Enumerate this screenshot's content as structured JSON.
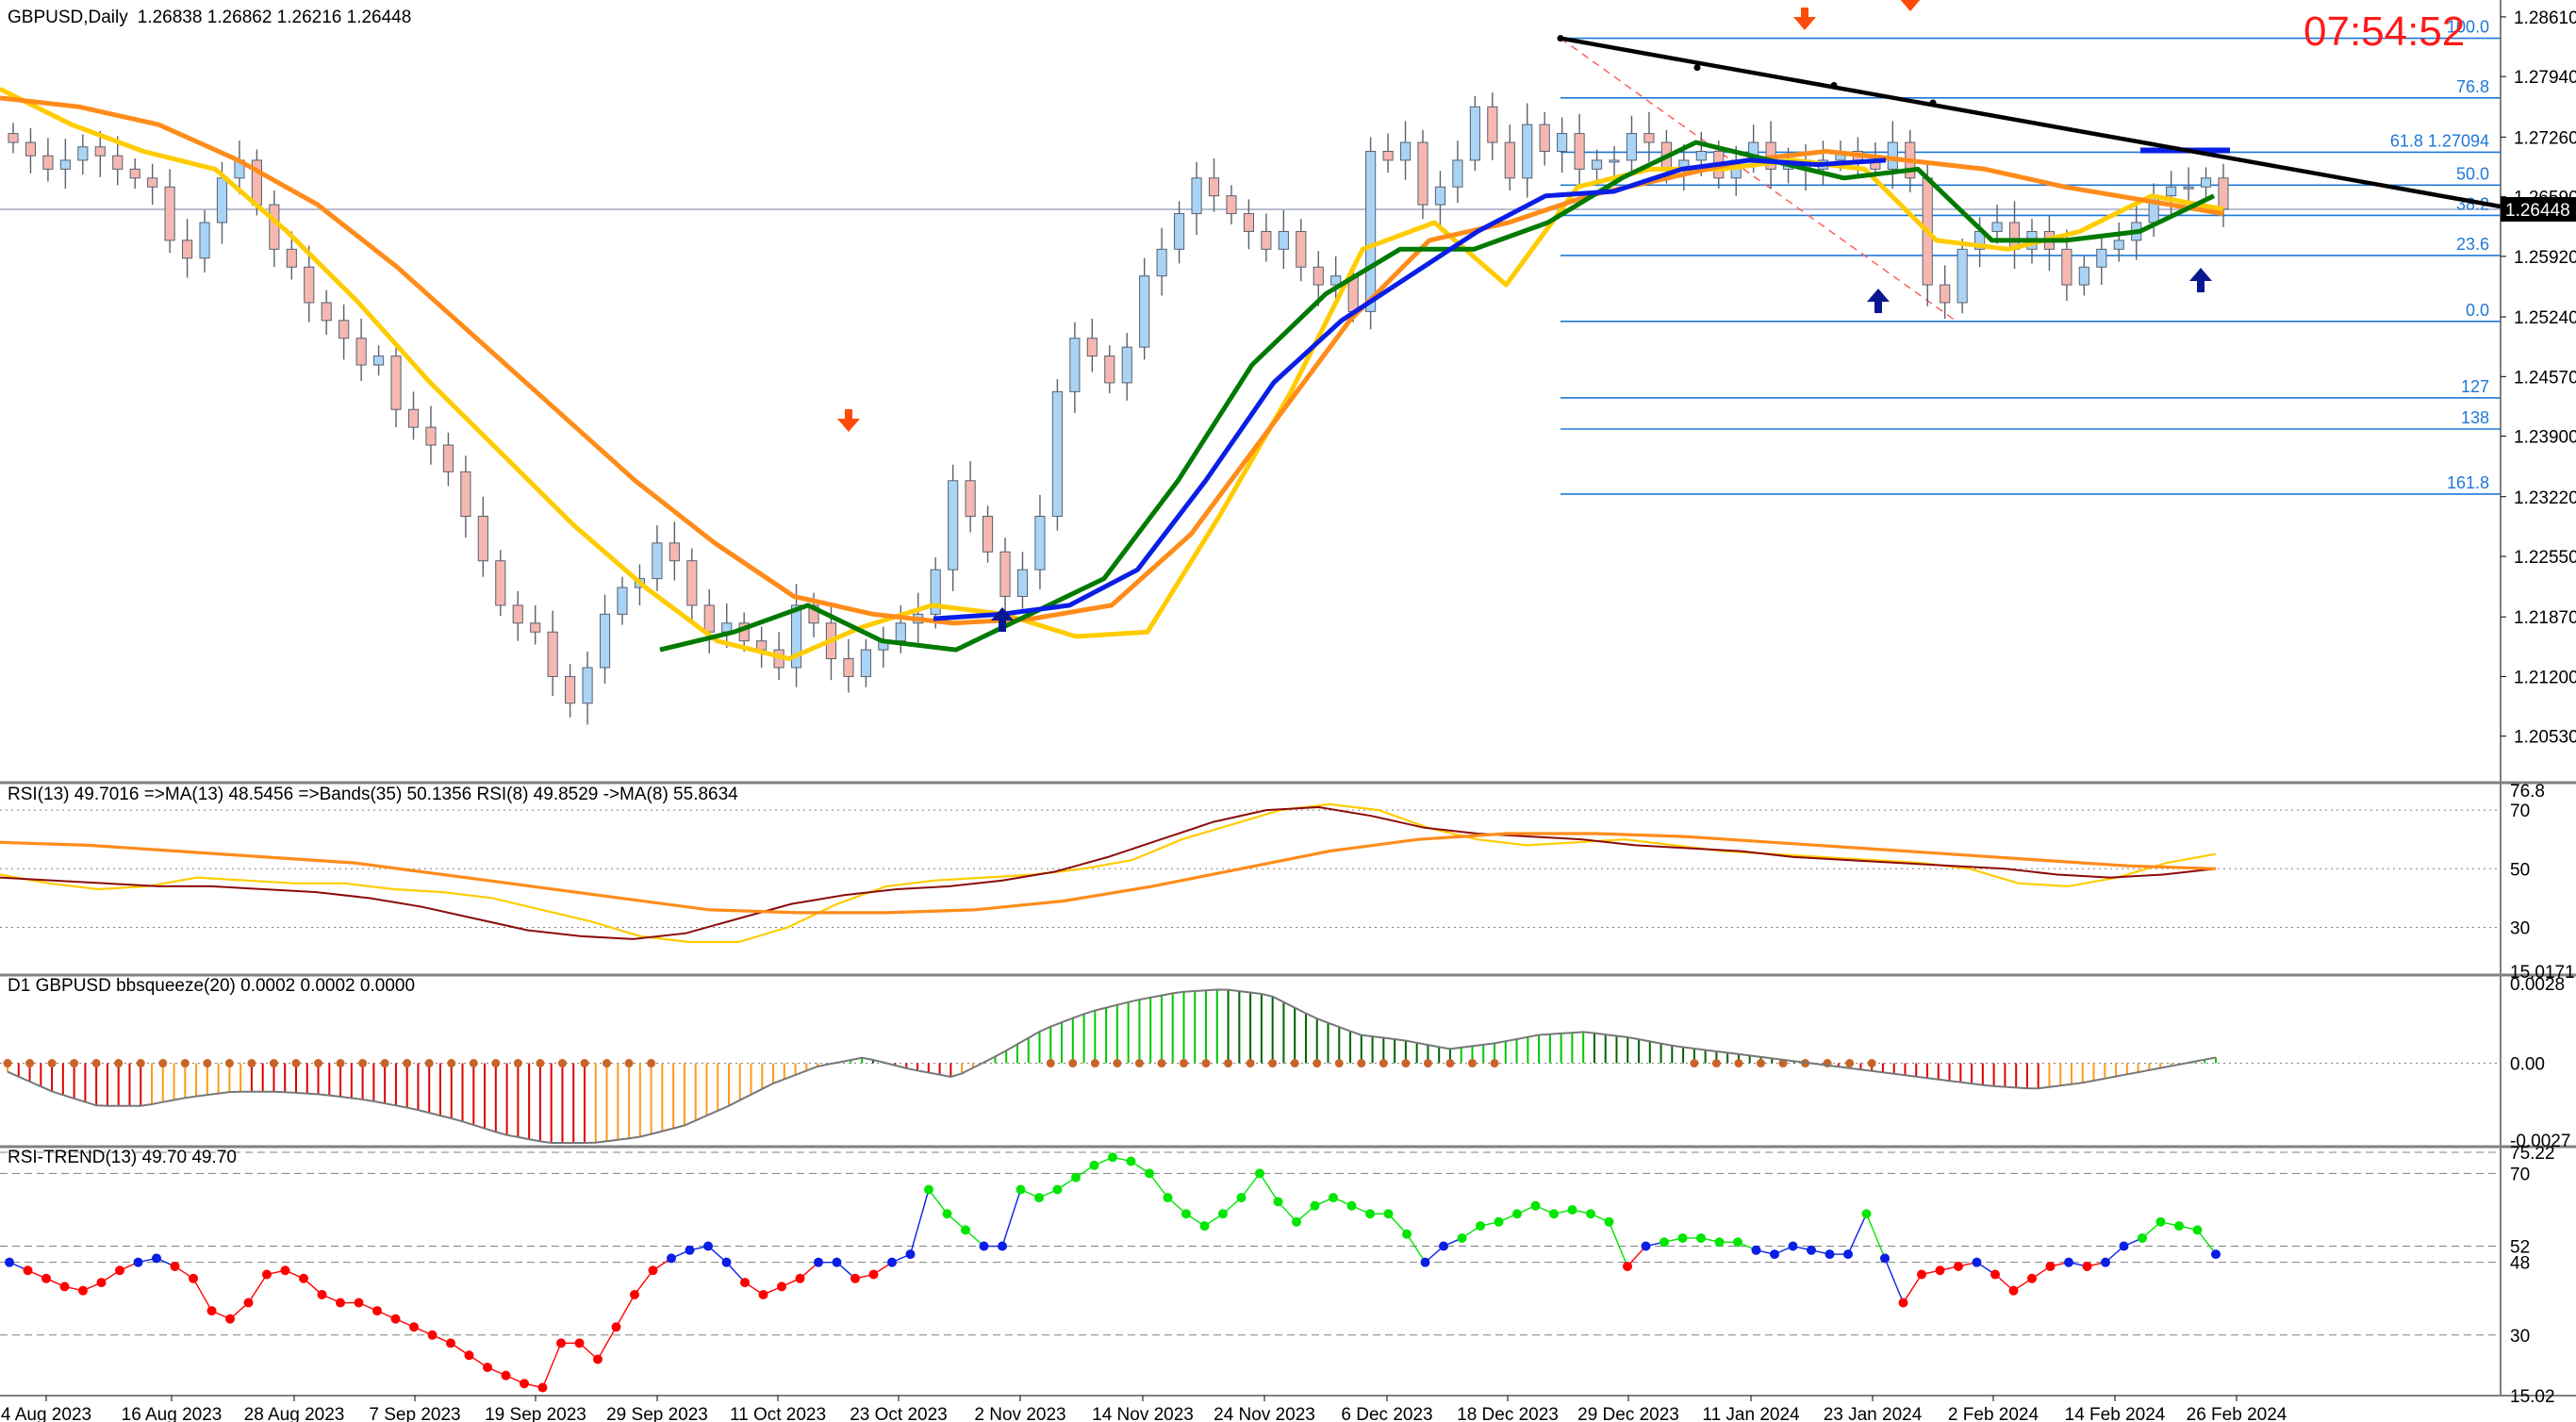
{
  "header": {
    "symbol": "GBPUSD,Daily",
    "ohlc": "1.26838 1.26862 1.26216 1.26448",
    "clock": "07:54:52",
    "current_price": "1.26448"
  },
  "colors": {
    "bull_candle": "#a9d4f5",
    "bear_candle": "#f5b8b0",
    "ma_fast": "#ffcc00",
    "ma_slow": "#ff8c1a",
    "ma_green": "#007a00",
    "ma_blue": "#0a1ee6",
    "fib": "#1e78d7",
    "trendline": "#000000",
    "arrow_down": "#ff4a0a",
    "arrow_up": "#0a1890",
    "clock": "#ff1a1a"
  },
  "chart_data": [
    {
      "type": "candlestick",
      "title": "GBPUSD,Daily",
      "ylim": [
        1.2005,
        1.288
      ],
      "y_ticks": [
        "1.28610",
        "1.27940",
        "1.27260",
        "1.26590",
        "1.25920",
        "1.25240",
        "1.24570",
        "1.23900",
        "1.23220",
        "1.22550",
        "1.21870",
        "1.21200",
        "1.20530"
      ],
      "x_ticks": [
        "4 Aug 2023",
        "16 Aug 2023",
        "28 Aug 2023",
        "7 Sep 2023",
        "19 Sep 2023",
        "29 Sep 2023",
        "11 Oct 2023",
        "23 Oct 2023",
        "2 Nov 2023",
        "14 Nov 2023",
        "24 Nov 2023",
        "6 Dec 2023",
        "18 Dec 2023",
        "29 Dec 2023",
        "11 Jan 2024",
        "23 Jan 2024",
        "2 Feb 2024",
        "14 Feb 2024",
        "26 Feb 2024"
      ],
      "close_path": [
        1.272,
        1.2705,
        1.269,
        1.27,
        1.2715,
        1.2705,
        1.269,
        1.268,
        1.267,
        1.261,
        1.259,
        1.263,
        1.268,
        1.27,
        1.265,
        1.26,
        1.258,
        1.254,
        1.252,
        1.25,
        1.247,
        1.248,
        1.242,
        1.24,
        1.238,
        1.235,
        1.23,
        1.225,
        1.22,
        1.218,
        1.217,
        1.212,
        1.209,
        1.213,
        1.219,
        1.222,
        1.223,
        1.227,
        1.225,
        1.22,
        1.217,
        1.218,
        1.216,
        1.215,
        1.213,
        1.22,
        1.218,
        1.214,
        1.212,
        1.215,
        1.216,
        1.218,
        1.219,
        1.224,
        1.234,
        1.23,
        1.226,
        1.221,
        1.224,
        1.23,
        1.244,
        1.25,
        1.248,
        1.245,
        1.249,
        1.257,
        1.26,
        1.264,
        1.268,
        1.266,
        1.264,
        1.262,
        1.26,
        1.262,
        1.258,
        1.256,
        1.257,
        1.253,
        1.271,
        1.27,
        1.272,
        1.265,
        1.267,
        1.27,
        1.276,
        1.272,
        1.268,
        1.274,
        1.271,
        1.273,
        1.269,
        1.27,
        1.27,
        1.273,
        1.272,
        1.269,
        1.27,
        1.271,
        1.268,
        1.27,
        1.272,
        1.269,
        1.27,
        1.269,
        1.27,
        1.271,
        1.27,
        1.269,
        1.272,
        1.268,
        1.256,
        1.254,
        1.26,
        1.262,
        1.263,
        1.26,
        1.262,
        1.26,
        1.256,
        1.258,
        1.26,
        1.261,
        1.263,
        1.266,
        1.267,
        1.267,
        1.268,
        1.2645
      ],
      "series": [
        {
          "name": "",
          "color": "#ffcc00",
          "values": [
            1.278,
            1.274,
            1.271,
            1.269,
            1.262,
            1.254,
            1.245,
            1.237,
            1.229,
            1.222,
            1.216,
            1.214,
            1.2175,
            1.22,
            1.219,
            1.2165,
            1.217,
            1.23,
            1.244,
            1.26,
            1.263,
            1.256,
            1.267,
            1.269,
            1.269,
            1.27,
            1.269,
            1.261,
            1.26,
            1.262,
            1.266,
            1.2645
          ]
        },
        {
          "name": "",
          "color": "#ff8c1a",
          "values": [
            1.277,
            1.276,
            1.274,
            1.27,
            1.265,
            1.258,
            1.25,
            1.242,
            1.234,
            1.227,
            1.221,
            1.219,
            1.218,
            1.2185,
            1.22,
            1.228,
            1.24,
            1.252,
            1.261,
            1.263,
            1.266,
            1.268,
            1.27,
            1.271,
            1.27,
            1.269,
            1.267,
            1.2655,
            1.264
          ]
        },
        {
          "name": "",
          "color": "#007a00",
          "values": [
            1.215,
            1.217,
            1.22,
            1.216,
            1.215,
            1.219,
            1.223,
            1.234,
            1.247,
            1.255,
            1.26,
            1.26,
            1.263,
            1.268,
            1.272,
            1.27,
            1.268,
            1.269,
            1.261,
            1.261,
            1.262,
            1.266
          ]
        },
        {
          "name": "",
          "color": "#0a1ee6",
          "values": [
            1.2185,
            1.219,
            1.22,
            1.224,
            1.234,
            1.245,
            1.252,
            1.257,
            1.262,
            1.266,
            1.2665,
            1.269,
            1.27,
            1.2695,
            1.27
          ]
        }
      ],
      "fib_levels": [
        {
          "label": "100.0",
          "value": 1.2837
        },
        {
          "label": "76.8",
          "value": 1.277
        },
        {
          "label": "61.8  1.27094",
          "value": 1.2709
        },
        {
          "label": "50.0",
          "value": 1.2672
        },
        {
          "label": "38.2",
          "value": 1.2638
        },
        {
          "label": "23.6",
          "value": 1.2593
        },
        {
          "label": "0.0",
          "value": 1.2519
        },
        {
          "label": "127",
          "value": 1.2433
        },
        {
          "label": "138",
          "value": 1.2398
        },
        {
          "label": "161.8",
          "value": 1.2325
        }
      ],
      "trendline": {
        "from": 1.2837,
        "to": 1.2648
      },
      "signals": {
        "up_arrows": 4,
        "down_arrows": 3
      }
    },
    {
      "type": "line",
      "title": "RSI(13) 49.7016  =>MA(13) 48.5456  =>Bands(35) 50.1356  RSI(8) 49.8529  ->MA(8) 55.8634",
      "ylim": [
        15.0171,
        76.8
      ],
      "y_ticks": [
        "76.8",
        "70",
        "50",
        "30",
        "15.0171"
      ],
      "levels": [
        70,
        50,
        30
      ],
      "series": [
        {
          "name": "RSI(8)",
          "color": "#ffcc00",
          "values": [
            48,
            45,
            43,
            44,
            47,
            46,
            45,
            45,
            43,
            42,
            40,
            36,
            32,
            27,
            25,
            25,
            30,
            38,
            44,
            46,
            47,
            48,
            50,
            53,
            60,
            65,
            70,
            72,
            70,
            64,
            60,
            58,
            59,
            60,
            58,
            56,
            55,
            54,
            53,
            52,
            50,
            45,
            44,
            47,
            52,
            55
          ]
        },
        {
          "name": "MA(13)",
          "color": "#8b0a0a",
          "values": [
            47,
            46,
            45,
            44,
            44,
            43,
            42,
            40,
            37,
            33,
            29,
            27,
            26,
            28,
            33,
            38,
            41,
            43,
            44,
            46,
            49,
            54,
            60,
            66,
            70,
            71,
            68,
            64,
            62,
            61,
            60,
            58,
            57,
            56,
            54,
            53,
            52,
            51,
            50,
            48,
            47,
            48,
            50
          ]
        },
        {
          "name": "Bands(35)",
          "color": "#ff8c1a",
          "values": [
            59,
            58,
            56,
            54,
            52,
            48,
            44,
            40,
            36,
            35,
            35,
            36,
            39,
            44,
            50,
            56,
            60,
            62,
            62,
            61,
            59,
            57,
            55,
            53,
            51,
            50
          ]
        }
      ]
    },
    {
      "type": "bar",
      "title": "D1 GBPUSD bbsqueeze(20) 0.0002 0.0002 0.0000",
      "y_ticks": [
        "0.0028",
        "0.00",
        "-0.0027"
      ],
      "ylim": [
        -0.0028,
        0.0029
      ],
      "values": [
        -0.0003,
        -0.001,
        -0.0015,
        -0.0015,
        -0.0012,
        -0.001,
        -0.001,
        -0.0011,
        -0.0013,
        -0.0016,
        -0.002,
        -0.0025,
        -0.0028,
        -0.0028,
        -0.0026,
        -0.0022,
        -0.0015,
        -0.0007,
        -0.0001,
        0.0002,
        -0.0002,
        -0.0005,
        0.0003,
        0.0012,
        0.0018,
        0.0022,
        0.0025,
        0.0026,
        0.0024,
        0.0016,
        0.001,
        0.0008,
        0.0005,
        0.0007,
        0.001,
        0.0011,
        0.0009,
        0.0006,
        0.0004,
        0.0002,
        0.0,
        -0.0002,
        -0.0004,
        -0.0006,
        -0.0008,
        -0.0009,
        -0.0007,
        -0.0004,
        -0.0001,
        0.0002
      ]
    },
    {
      "type": "scatter",
      "title": "RSI-TREND(13) 49.70 49.70",
      "ylim": [
        15.02,
        75.22
      ],
      "y_ticks": [
        "75.22",
        "70",
        "52",
        "48",
        "30",
        "15.02"
      ],
      "levels": [
        75.22,
        70,
        52,
        48,
        30
      ],
      "values": [
        48,
        46,
        44,
        42,
        41,
        43,
        46,
        48,
        49,
        47,
        44,
        36,
        34,
        38,
        45,
        46,
        44,
        40,
        38,
        38,
        36,
        34,
        32,
        30,
        28,
        25,
        22,
        20,
        18,
        17,
        28,
        28,
        24,
        32,
        40,
        46,
        49,
        51,
        52,
        48,
        43,
        40,
        42,
        44,
        48,
        48,
        44,
        45,
        48,
        50,
        66,
        60,
        56,
        52,
        52,
        66,
        64,
        66,
        69,
        72,
        74,
        73,
        70,
        64,
        60,
        57,
        60,
        64,
        70,
        63,
        58,
        62,
        64,
        62,
        60,
        60,
        55,
        48,
        52,
        54,
        57,
        58,
        60,
        62,
        60,
        61,
        60,
        58,
        47,
        52,
        53,
        54,
        54,
        53,
        53,
        51,
        50,
        52,
        51,
        50,
        50,
        60,
        49,
        38,
        45,
        46,
        47,
        48,
        45,
        41,
        44,
        47,
        48,
        47,
        48,
        52,
        54,
        58,
        57,
        56,
        50
      ],
      "dot_colors": {
        "above_52": "#00e600",
        "between": "#0a1ee6",
        "below_48": "#ff0000"
      }
    }
  ]
}
